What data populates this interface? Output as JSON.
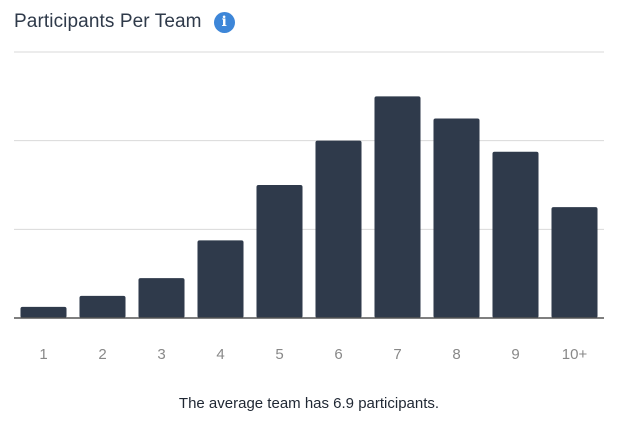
{
  "widget": {
    "title": "Participants Per Team",
    "info_icon": "info-icon",
    "caption": "The average team has 6.9 participants."
  },
  "colors": {
    "bar": "#2f3a4b",
    "grid": "#d9d9d9",
    "axis": "#555555",
    "tick_label": "#888888",
    "info_icon": "#3d86d8"
  },
  "chart_data": {
    "type": "bar",
    "categories": [
      "1",
      "2",
      "3",
      "4",
      "5",
      "6",
      "7",
      "8",
      "9",
      "10+"
    ],
    "values": [
      2.5,
      5,
      9,
      17.5,
      30,
      40,
      50,
      45,
      37.5,
      25
    ],
    "ylim": [
      0,
      60
    ],
    "yticks": [
      0,
      20,
      40,
      60
    ],
    "grid": true,
    "ytick_labels_visible": false,
    "legend": "none"
  }
}
